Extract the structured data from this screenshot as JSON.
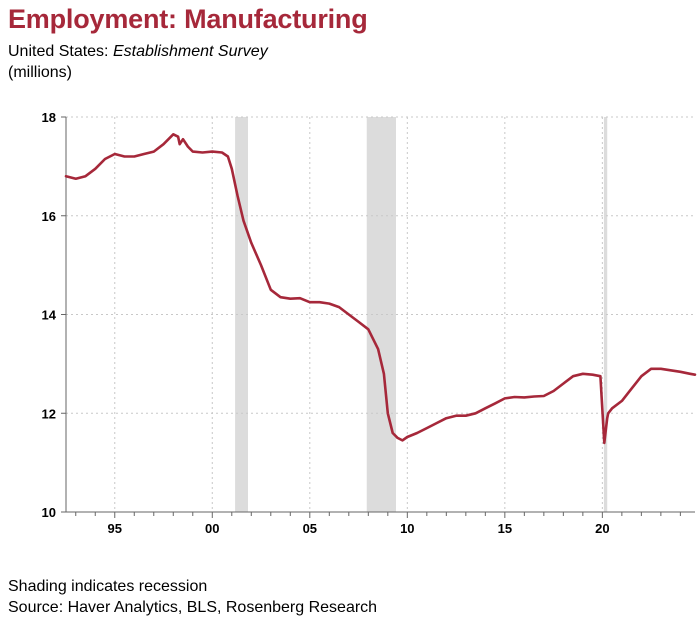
{
  "header": {
    "title": "Employment: Manufacturing",
    "subtitle_prefix": "United States: ",
    "subtitle_italic": "Establishment Survey",
    "units": "(millions)"
  },
  "footer": {
    "note": "Shading indicates recession",
    "source": "Source: Haver Analytics, BLS, Rosenberg Research"
  },
  "chart_data": {
    "type": "line",
    "title": "Employment: Manufacturing",
    "xlim": [
      1992.5,
      2024.75
    ],
    "ylim": [
      10,
      18
    ],
    "x_ticks": [
      {
        "value": 1995,
        "label": "95"
      },
      {
        "value": 2000,
        "label": "00"
      },
      {
        "value": 2005,
        "label": "05"
      },
      {
        "value": 2010,
        "label": "10"
      },
      {
        "value": 2015,
        "label": "15"
      },
      {
        "value": 2020,
        "label": "20"
      }
    ],
    "y_ticks": [
      10,
      12,
      14,
      16,
      18
    ],
    "grid": true,
    "line_color": "#a6283a",
    "recession_color": "#dcdcdc",
    "recessions": [
      {
        "start": 2001.17,
        "end": 2001.83
      },
      {
        "start": 2007.92,
        "end": 2009.42
      },
      {
        "start": 2020.08,
        "end": 2020.25
      }
    ],
    "series": [
      {
        "x": [
          1992.5,
          1993.0,
          1993.5,
          1994.0,
          1994.5,
          1995.0,
          1995.5,
          1996.0,
          1996.5,
          1997.0,
          1997.5,
          1998.0,
          1998.25,
          1998.33,
          1998.5,
          1998.75,
          1999.0,
          1999.5,
          2000.0,
          2000.5,
          2000.8,
          2001.0,
          2001.3,
          2001.6,
          2002.0,
          2002.5,
          2003.0,
          2003.5,
          2004.0,
          2004.5,
          2005.0,
          2005.5,
          2006.0,
          2006.5,
          2007.0,
          2007.5,
          2008.0,
          2008.5,
          2008.8,
          2009.0,
          2009.25,
          2009.5,
          2009.75,
          2010.0,
          2010.5,
          2011.0,
          2011.5,
          2012.0,
          2012.5,
          2013.0,
          2013.5,
          2014.0,
          2014.5,
          2015.0,
          2015.5,
          2016.0,
          2016.5,
          2017.0,
          2017.5,
          2018.0,
          2018.5,
          2019.0,
          2019.5,
          2019.9,
          2020.1,
          2020.25,
          2020.3,
          2020.5,
          2021.0,
          2021.5,
          2022.0,
          2022.5,
          2023.0,
          2023.5,
          2024.0,
          2024.5,
          2024.75
        ],
        "values": [
          16.8,
          16.75,
          16.8,
          16.95,
          17.15,
          17.25,
          17.2,
          17.2,
          17.25,
          17.3,
          17.45,
          17.65,
          17.6,
          17.45,
          17.55,
          17.4,
          17.3,
          17.28,
          17.3,
          17.28,
          17.2,
          16.95,
          16.4,
          15.9,
          15.45,
          15.0,
          14.5,
          14.35,
          14.32,
          14.33,
          14.25,
          14.25,
          14.22,
          14.15,
          14.0,
          13.85,
          13.7,
          13.3,
          12.8,
          12.0,
          11.6,
          11.5,
          11.45,
          11.52,
          11.6,
          11.7,
          11.8,
          11.9,
          11.95,
          11.95,
          12.0,
          12.1,
          12.2,
          12.3,
          12.33,
          12.32,
          12.34,
          12.35,
          12.45,
          12.6,
          12.75,
          12.8,
          12.78,
          12.75,
          11.4,
          11.9,
          12.0,
          12.1,
          12.25,
          12.5,
          12.75,
          12.9,
          12.9,
          12.87,
          12.84,
          12.8,
          12.78
        ]
      }
    ]
  }
}
